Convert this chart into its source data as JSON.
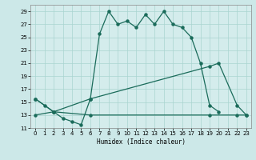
{
  "bg_color": "#cce8e8",
  "plot_bg": "#d4ecec",
  "grid_color": "#aad4d0",
  "line_color": "#1a6b5a",
  "xlabel": "Humidex (Indice chaleur)",
  "xlim": [
    -0.5,
    23.5
  ],
  "ylim": [
    11,
    30
  ],
  "yticks": [
    11,
    13,
    15,
    17,
    19,
    21,
    23,
    25,
    27,
    29
  ],
  "xticks": [
    0,
    1,
    2,
    3,
    4,
    5,
    6,
    7,
    8,
    9,
    10,
    11,
    12,
    13,
    14,
    15,
    16,
    17,
    18,
    19,
    20,
    21,
    22,
    23
  ],
  "line1": [
    [
      0,
      15.5
    ],
    [
      1,
      14.5
    ],
    [
      2,
      13.5
    ],
    [
      3,
      12.5
    ],
    [
      4,
      12.0
    ],
    [
      5,
      11.5
    ],
    [
      6,
      15.5
    ],
    [
      7,
      25.5
    ],
    [
      8,
      29.0
    ],
    [
      9,
      27.0
    ],
    [
      10,
      27.5
    ],
    [
      11,
      26.5
    ],
    [
      12,
      28.5
    ],
    [
      13,
      27.0
    ],
    [
      14,
      29.0
    ],
    [
      15,
      27.0
    ],
    [
      16,
      26.5
    ],
    [
      17,
      25.0
    ],
    [
      18,
      21.0
    ],
    [
      19,
      14.5
    ],
    [
      20,
      13.5
    ]
  ],
  "line2": [
    [
      0,
      15.5
    ],
    [
      2,
      13.5
    ],
    [
      6,
      15.5
    ],
    [
      19,
      20.5
    ],
    [
      20,
      21.0
    ],
    [
      22,
      14.5
    ],
    [
      23,
      13.0
    ]
  ],
  "line3": [
    [
      0,
      13.0
    ],
    [
      2,
      13.5
    ],
    [
      6,
      13.0
    ],
    [
      19,
      13.0
    ],
    [
      22,
      13.0
    ],
    [
      23,
      13.0
    ]
  ]
}
